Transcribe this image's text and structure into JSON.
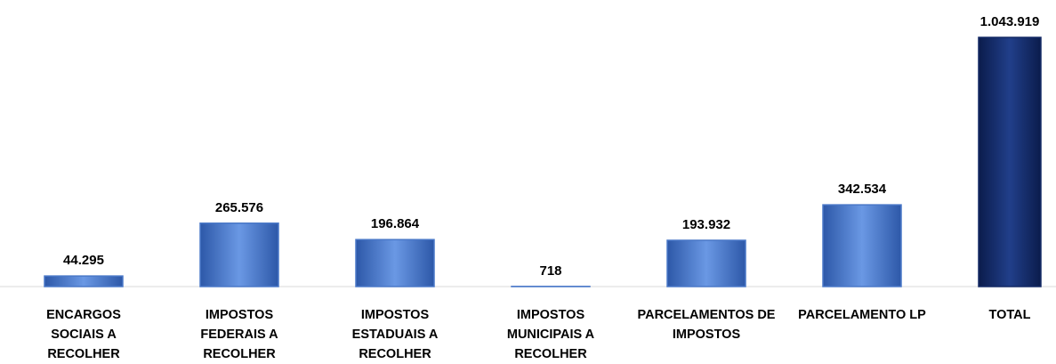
{
  "chart_data": {
    "type": "bar",
    "categories": [
      "ENCARGOS SOCIAIS A RECOLHER",
      "IMPOSTOS FEDERAIS A RECOLHER",
      "IMPOSTOS ESTADUAIS A RECOLHER",
      "IMPOSTOS MUNICIPAIS A RECOLHER",
      "PARCELAMENTOS DE IMPOSTOS",
      "PARCELAMENTO LP",
      "TOTAL"
    ],
    "values": [
      44295,
      265576,
      196864,
      718,
      193932,
      342534,
      1043919
    ],
    "value_labels": [
      "44.295",
      "265.576",
      "196.864",
      "718",
      "193.932",
      "342.534",
      "1.043.919"
    ],
    "colors": [
      "#4a78c8",
      "#4a78c8",
      "#4a78c8",
      "#4a78c8",
      "#4a78c8",
      "#4a78c8",
      "#142a66"
    ]
  }
}
